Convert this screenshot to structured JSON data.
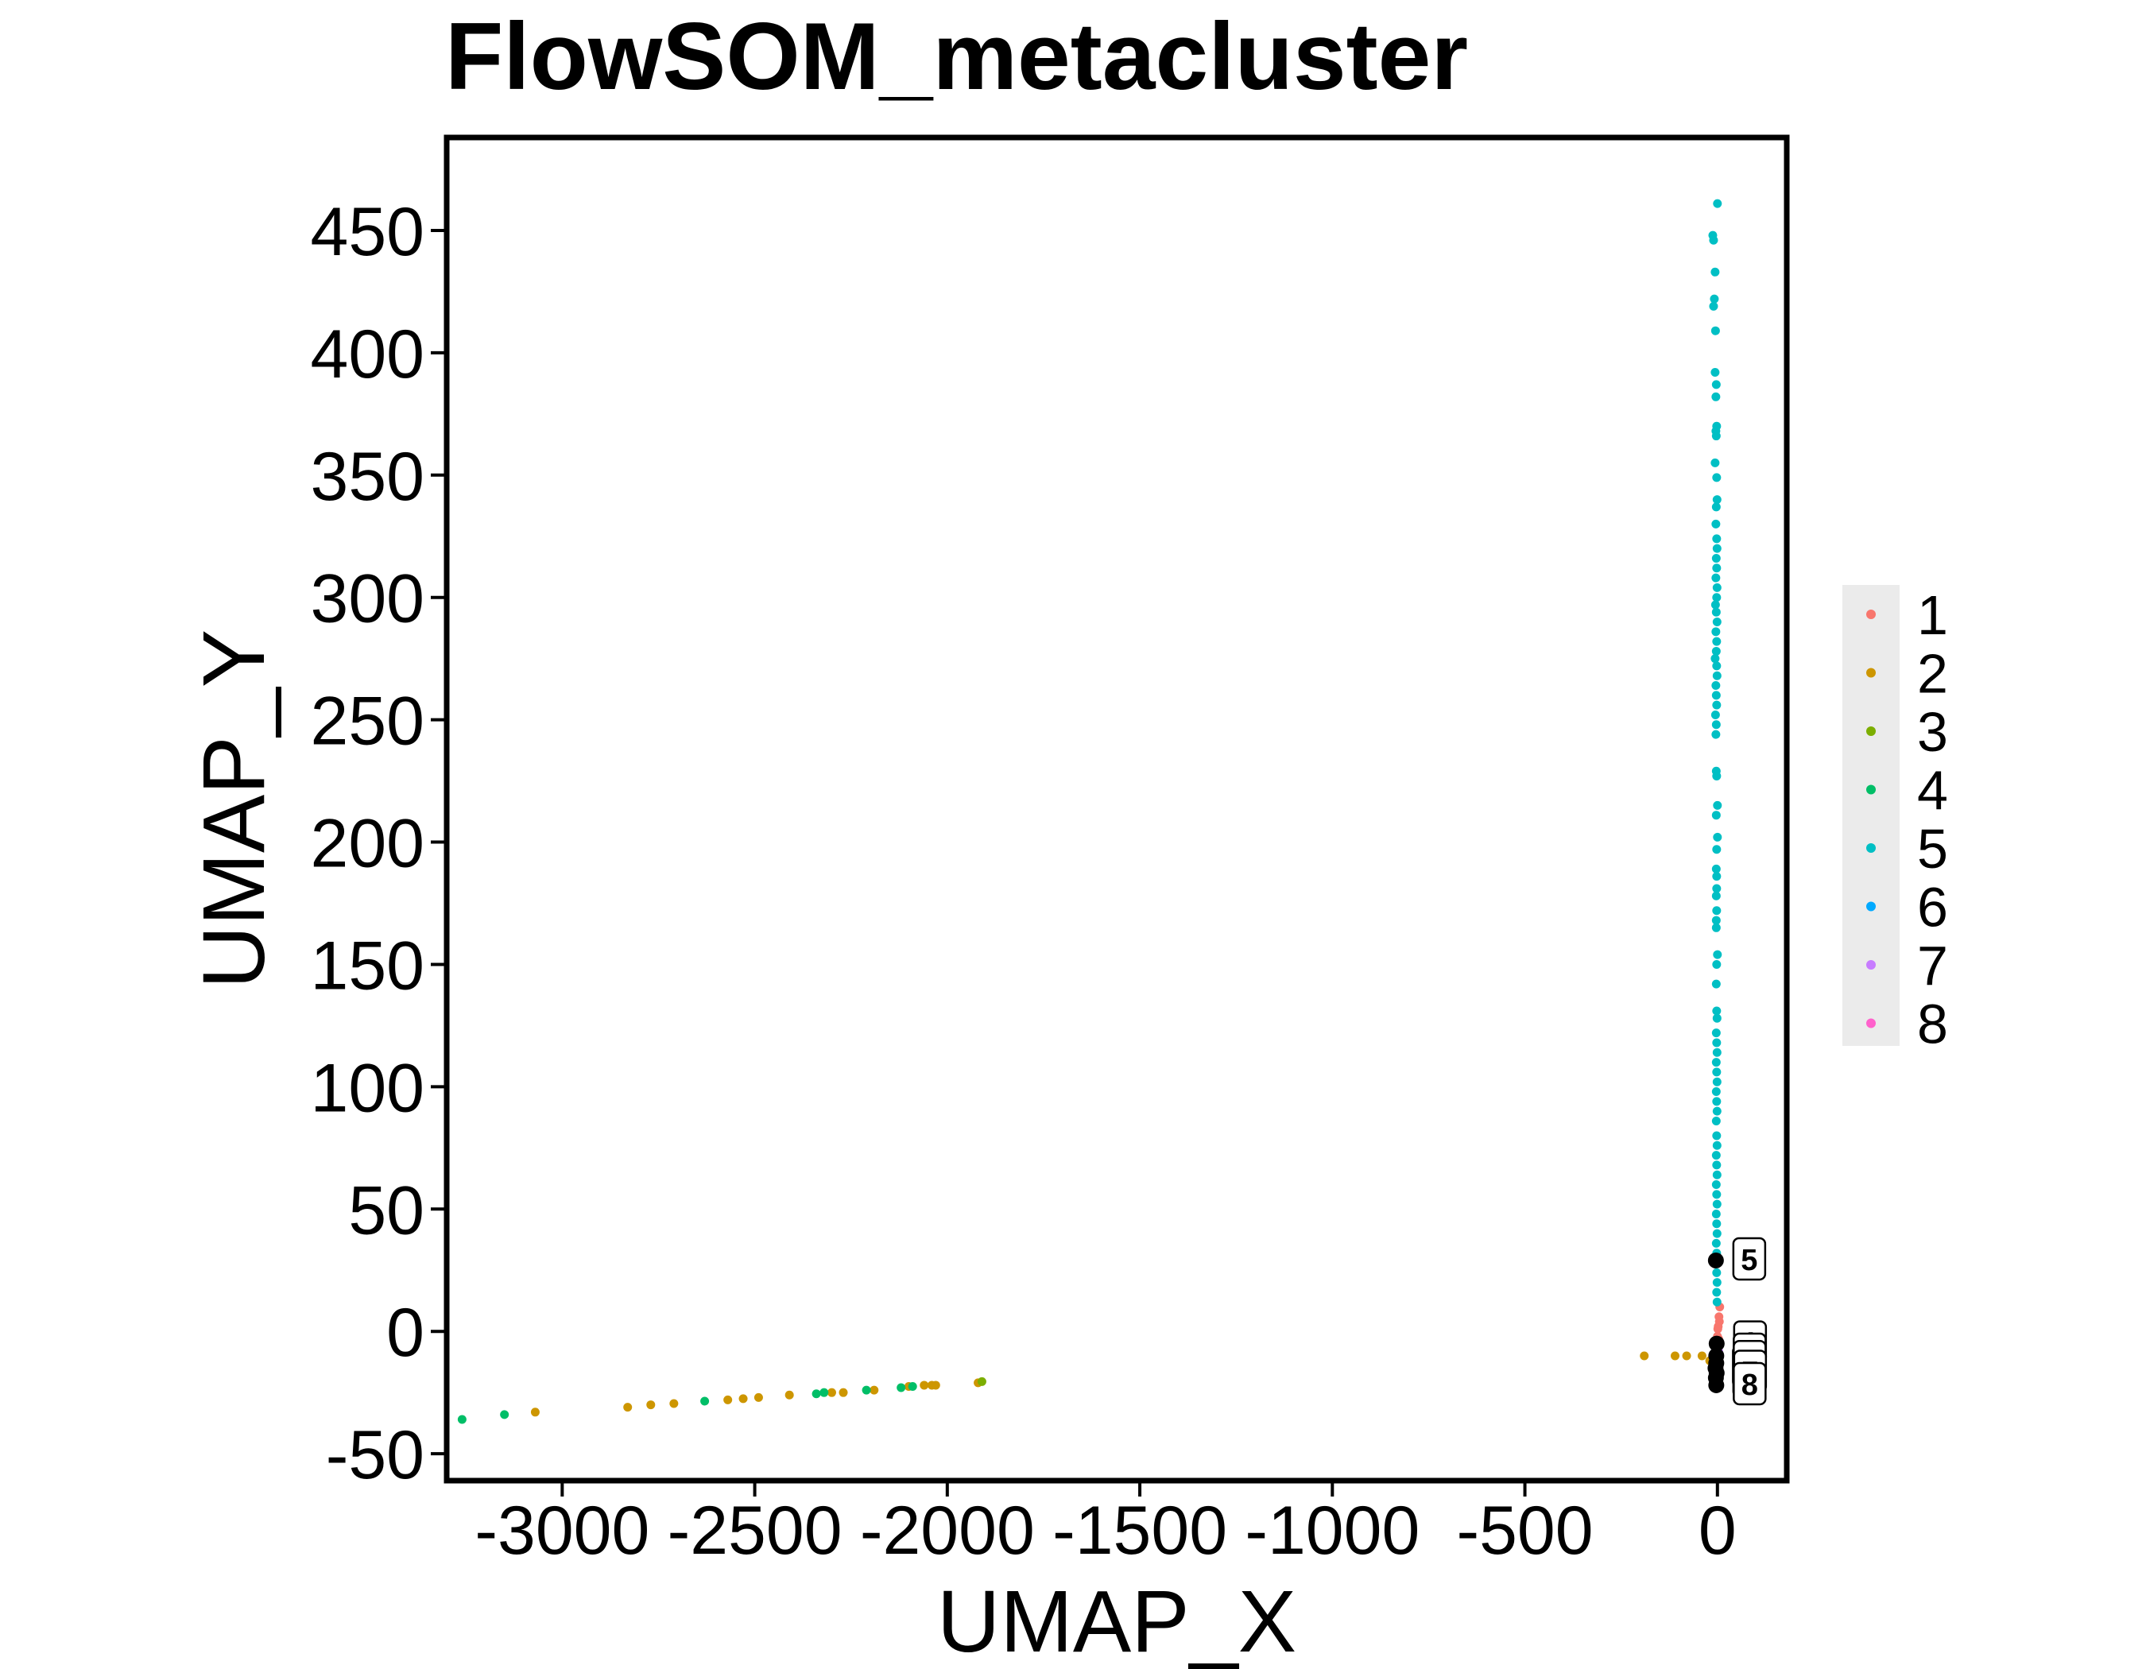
{
  "chart_data": {
    "type": "scatter",
    "title": "FlowSOM_metacluster",
    "xlabel": "UMAP_X",
    "ylabel": "UMAP_Y",
    "xlim": [
      -3300,
      180
    ],
    "ylim": [
      -61,
      488
    ],
    "x_ticks": [
      -3000,
      -2500,
      -2000,
      -1500,
      -1000,
      -500,
      0
    ],
    "x_tick_labels": [
      "-3000",
      "-2500",
      "-2000",
      "-1500",
      "-1000",
      "-500",
      "0"
    ],
    "y_ticks": [
      -50,
      0,
      50,
      100,
      150,
      200,
      250,
      300,
      350,
      400,
      450
    ],
    "y_tick_labels": [
      "-50",
      "0",
      "50",
      "100",
      "150",
      "200",
      "250",
      "300",
      "350",
      "400",
      "450"
    ],
    "grid": false,
    "legend_position": "right",
    "series": [
      {
        "name": "1",
        "color": "#F8766D",
        "points": [
          [
            0,
            -2
          ],
          [
            2,
            2
          ],
          [
            4,
            6
          ],
          [
            6,
            10
          ],
          [
            -2,
            -6
          ],
          [
            3,
            -3
          ],
          [
            1,
            1
          ],
          [
            5,
            4
          ],
          [
            -1,
            -9
          ],
          [
            2,
            -12
          ],
          [
            4,
            -15
          ]
        ]
      },
      {
        "name": "2",
        "color": "#CD9600",
        "points": [
          [
            -3070,
            -33
          ],
          [
            -2830,
            -31
          ],
          [
            -2770,
            -30
          ],
          [
            -2710,
            -29.5
          ],
          [
            -2570,
            -28
          ],
          [
            -2530,
            -27.5
          ],
          [
            -2490,
            -27
          ],
          [
            -2410,
            -26
          ],
          [
            -2300,
            -25
          ],
          [
            -2270,
            -25
          ],
          [
            -2190,
            -24
          ],
          [
            -2100,
            -22.5
          ],
          [
            -2060,
            -22
          ],
          [
            -2040,
            -22
          ],
          [
            -2030,
            -22
          ],
          [
            -1920,
            -21
          ],
          [
            -190,
            -10
          ],
          [
            -110,
            -10
          ],
          [
            -80,
            -10
          ],
          [
            -40,
            -10
          ],
          [
            -20,
            -12
          ]
        ]
      },
      {
        "name": "3",
        "color": "#7CAE00",
        "points": [
          [
            -1910,
            -20.5
          ]
        ]
      },
      {
        "name": "4",
        "color": "#00BE67",
        "points": [
          [
            -3260,
            -36
          ],
          [
            -3150,
            -34
          ],
          [
            -2630,
            -28.5
          ],
          [
            -2340,
            -25.5
          ],
          [
            -2320,
            -25
          ],
          [
            -2210,
            -24
          ],
          [
            -2120,
            -23
          ],
          [
            -2090,
            -22.5
          ]
        ]
      },
      {
        "name": "5",
        "color": "#00BFC4",
        "points": [
          [
            0,
            461
          ],
          [
            -12,
            448
          ],
          [
            -10,
            446
          ],
          [
            -6,
            433
          ],
          [
            -8,
            422
          ],
          [
            -10,
            419
          ],
          [
            -5,
            409
          ],
          [
            -6,
            392
          ],
          [
            -3,
            387
          ],
          [
            -4,
            382
          ],
          [
            -2,
            370
          ],
          [
            -4,
            368
          ],
          [
            -3,
            366
          ],
          [
            -6,
            355
          ],
          [
            -2,
            349
          ],
          [
            -1,
            340
          ],
          [
            -3,
            337
          ],
          [
            -4,
            330
          ],
          [
            -2,
            324
          ],
          [
            -1,
            320
          ],
          [
            -3,
            316
          ],
          [
            -2,
            312
          ],
          [
            -4,
            308
          ],
          [
            -1,
            304
          ],
          [
            -2,
            300
          ],
          [
            -5,
            297
          ],
          [
            -3,
            294
          ],
          [
            -1,
            290
          ],
          [
            -4,
            286
          ],
          [
            -2,
            282
          ],
          [
            -3,
            278
          ],
          [
            -6,
            275
          ],
          [
            -2,
            272
          ],
          [
            -1,
            268
          ],
          [
            -4,
            264
          ],
          [
            -3,
            260
          ],
          [
            -2,
            256
          ],
          [
            -5,
            252
          ],
          [
            -3,
            248
          ],
          [
            -4,
            244
          ],
          [
            -3,
            229
          ],
          [
            -2,
            227
          ],
          [
            0,
            215
          ],
          [
            -3,
            211
          ],
          [
            0,
            202
          ],
          [
            -2,
            197
          ],
          [
            -3,
            189
          ],
          [
            -2,
            186
          ],
          [
            -2,
            181
          ],
          [
            -3,
            178
          ],
          [
            -2,
            172
          ],
          [
            -3,
            168
          ],
          [
            -3,
            165
          ],
          [
            0,
            154
          ],
          [
            -2,
            150
          ],
          [
            -3,
            142
          ],
          [
            -2,
            131
          ],
          [
            -1,
            128
          ],
          [
            -3,
            122
          ],
          [
            -2,
            118
          ],
          [
            -1,
            114
          ],
          [
            -3,
            110
          ],
          [
            -2,
            106
          ],
          [
            -1,
            102
          ],
          [
            -3,
            98
          ],
          [
            -2,
            94
          ],
          [
            -1,
            90
          ],
          [
            -3,
            86
          ],
          [
            -2,
            80
          ],
          [
            -1,
            76
          ],
          [
            -3,
            72
          ],
          [
            -2,
            68
          ],
          [
            -1,
            64
          ],
          [
            -3,
            60
          ],
          [
            -2,
            56
          ],
          [
            -1,
            52
          ],
          [
            -3,
            48
          ],
          [
            -2,
            44
          ],
          [
            -1,
            40
          ],
          [
            -3,
            36
          ],
          [
            -2,
            32
          ],
          [
            -1,
            28
          ],
          [
            -2,
            24
          ],
          [
            -1,
            20
          ],
          [
            -2,
            16
          ],
          [
            -1,
            12
          ]
        ]
      },
      {
        "name": "6",
        "color": "#00A9FF",
        "points": [
          [
            2,
            -4
          ]
        ]
      },
      {
        "name": "7",
        "color": "#C77CFF",
        "points": [
          [
            3,
            -8
          ]
        ]
      },
      {
        "name": "8",
        "color": "#FF61CC",
        "points": [
          [
            1,
            -14
          ]
        ]
      }
    ],
    "cluster_labels": [
      {
        "label": "5",
        "x": -4,
        "y": 29
      },
      {
        "label": "1",
        "x": -2,
        "y": -5
      },
      {
        "label": "2",
        "x": -3,
        "y": -10
      },
      {
        "label": "3",
        "x": -5,
        "y": -15
      },
      {
        "label": "4",
        "x": -4,
        "y": -19
      },
      {
        "label": "6",
        "x": -3,
        "y": -13
      },
      {
        "label": "7",
        "x": -2,
        "y": -17
      },
      {
        "label": "8",
        "x": -3,
        "y": -22
      }
    ]
  }
}
